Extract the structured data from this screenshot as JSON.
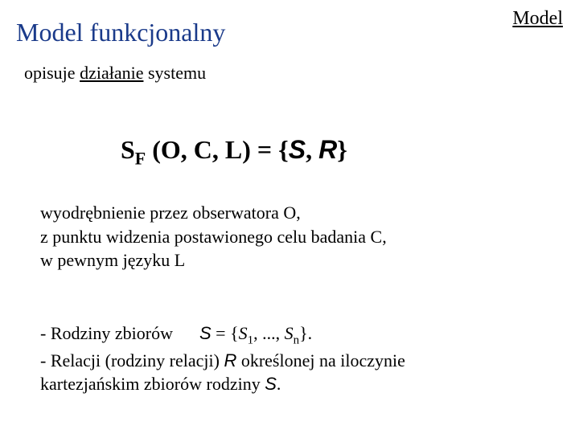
{
  "header": {
    "right": "Model"
  },
  "title": "Model funkcjonalny",
  "subtitle": {
    "plain1": "opisuje ",
    "underlined": "działanie",
    "plain2": " systemu"
  },
  "formula": {
    "s": "S",
    "f": "F",
    "mid": " (O, C, L) = {",
    "sr_s": "S",
    "sr_comma": ", ",
    "sr_r": "R",
    "end": "}"
  },
  "para1": {
    "l1a": "wyodrębnienie przez obserwatora ",
    "l1b": "O",
    "l1c": ",",
    "l2a": " z punktu widzenia postawionego celu badania ",
    "l2b": "C",
    "l2c": ",",
    "l3a": "w pewnym języku ",
    "l3b": "L"
  },
  "para2": {
    "l1a": "- Rodziny zbiorów      ",
    "l1_S": "S",
    "l1b": " = {",
    "l1_S1": "S",
    "l1_sub1": "1",
    "l1c": ", ..., ",
    "l1_Sn": "S",
    "l1_subn": "n",
    "l1d": "}.",
    "l2a": "- Relacji (rodziny relacji) ",
    "l2_R": "R",
    "l2b": " określonej na iloczynie",
    "l3a": "kartezjańskim zbiorów rodziny ",
    "l3_S": "S",
    "l3b": "."
  },
  "styling": {
    "title_color": "#1a3a8a",
    "background": "#ffffff",
    "body_font": "Georgia, Times New Roman, serif",
    "accent_font": "Arial, sans-serif",
    "title_fontsize": 32,
    "header_fontsize": 24,
    "body_fontsize": 22,
    "formula_fontsize": 32
  }
}
